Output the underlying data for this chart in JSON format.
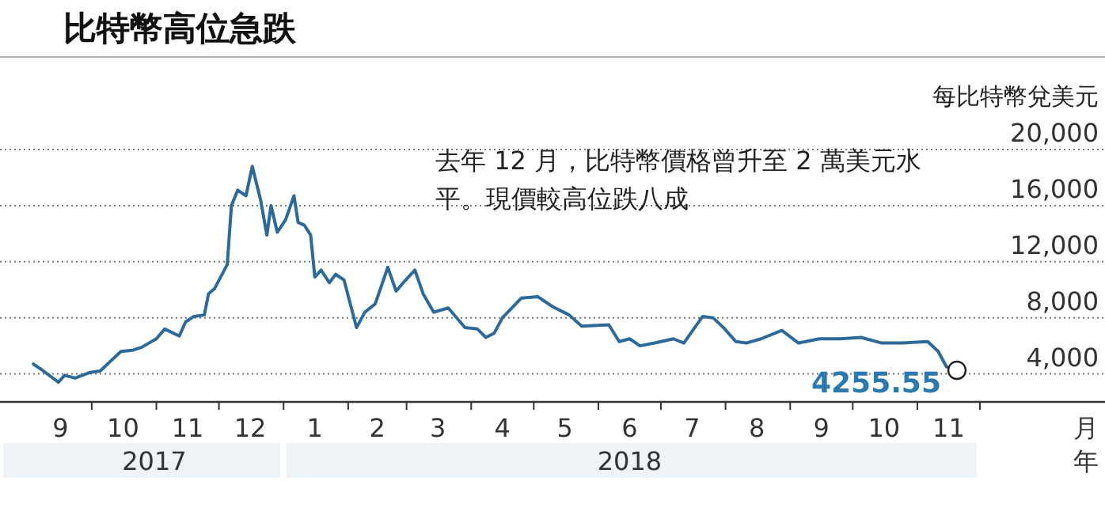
{
  "chart_data": {
    "type": "line",
    "title": "比特幣高位急跌",
    "ylabel": "每比特幣兌美元",
    "xlabel": "月",
    "x2label": "年",
    "annotations": [
      "去年 12 月，比特幣價格曾升至 2 萬美元水平。現價較高位跌八成",
      {
        "text": "4255.55",
        "x": "2018-11-20",
        "y": 4255.55
      }
    ],
    "x2lim": [
      "2017-08-18",
      "2019-01-30"
    ],
    "x2ticks": [
      {
        "value": "2017-10-31",
        "label": "2017"
      },
      {
        "value": "2018-06-16",
        "label": "2018"
      }
    ],
    "x": [
      "2017-09-03",
      "2017-09-07",
      "2017-09-15",
      "2017-09-18",
      "2017-09-23",
      "2017-09-30",
      "2017-10-05",
      "2017-10-10",
      "2017-10-15",
      "2017-10-21",
      "2017-10-25",
      "2017-11-01",
      "2017-11-05",
      "2017-11-12",
      "2017-11-15",
      "2017-11-19",
      "2017-11-24",
      "2017-11-26",
      "2017-11-29",
      "2017-12-05",
      "2017-12-07",
      "2017-12-10",
      "2017-12-14",
      "2017-12-17",
      "2017-12-21",
      "2017-12-24",
      "2017-12-26",
      "2017-12-29",
      "2018-01-02",
      "2018-01-06",
      "2018-01-08",
      "2018-01-11",
      "2018-01-14",
      "2018-01-16",
      "2018-01-19",
      "2018-01-23",
      "2018-01-26",
      "2018-01-30",
      "2018-02-05",
      "2018-02-09",
      "2018-02-14",
      "2018-02-20",
      "2018-02-24",
      "2018-02-28",
      "2018-03-05",
      "2018-03-09",
      "2018-03-14",
      "2018-03-21",
      "2018-03-29",
      "2018-04-04",
      "2018-04-08",
      "2018-04-12",
      "2018-04-16",
      "2018-04-25",
      "2018-05-03",
      "2018-05-10",
      "2018-05-18",
      "2018-05-24",
      "2018-06-06",
      "2018-06-11",
      "2018-06-16",
      "2018-06-21",
      "2018-06-28",
      "2018-07-07",
      "2018-07-12",
      "2018-07-21",
      "2018-07-26",
      "2018-07-31",
      "2018-08-06",
      "2018-08-11",
      "2018-08-18",
      "2018-08-28",
      "2018-09-05",
      "2018-09-15",
      "2018-09-25",
      "2018-10-05",
      "2018-10-15",
      "2018-10-25",
      "2018-11-06",
      "2018-11-11",
      "2018-11-15",
      "2018-11-20"
    ],
    "series": [
      {
        "color": "#2b6a9b",
        "values": [
          4700,
          4300,
          3400,
          3900,
          3700,
          4100,
          4200,
          4900,
          5600,
          5700,
          5900,
          6500,
          7200,
          6700,
          7700,
          8100,
          8200,
          9700,
          10100,
          11800,
          16000,
          17100,
          16700,
          18800,
          16400,
          13900,
          16000,
          14100,
          15000,
          16700,
          14800,
          14600,
          13900,
          10900,
          11400,
          10500,
          11100,
          10700,
          7300,
          8400,
          9000,
          11600,
          9900,
          10600,
          11400,
          9700,
          8400,
          8700,
          7300,
          7200,
          6600,
          6900,
          8000,
          9400,
          9500,
          8800,
          8200,
          7400,
          7500,
          6300,
          6500,
          6000,
          6200,
          6500,
          6200,
          8100,
          8000,
          7300,
          6300,
          6200,
          6500,
          7100,
          6200,
          6500,
          6500,
          6600,
          6200,
          6200,
          6300,
          5600,
          4500,
          4255.55
        ]
      }
    ],
    "xlim": [
      "2017-08-18",
      "2019-01-30"
    ],
    "xticks": [
      {
        "value": "2017-10-01",
        "label": null
      },
      {
        "value": "2017-11-01",
        "label": null
      },
      {
        "value": "2017-12-01",
        "label": null
      },
      {
        "value": "2018-01-01",
        "label": null
      },
      {
        "value": "2018-02-01",
        "label": null
      },
      {
        "value": "2018-03-01",
        "label": null
      },
      {
        "value": "2018-04-01",
        "label": null
      },
      {
        "value": "2018-05-01",
        "label": null
      },
      {
        "value": "2018-06-01",
        "label": null
      },
      {
        "value": "2018-07-01",
        "label": null
      },
      {
        "value": "2018-08-01",
        "label": null
      },
      {
        "value": "2018-09-01",
        "label": null
      },
      {
        "value": "2018-10-01",
        "label": null
      },
      {
        "value": "2018-11-01",
        "label": null
      },
      {
        "value": "2018-12-01",
        "label": null
      },
      {
        "value": "2017-09-16",
        "label": "9"
      },
      {
        "value": "2017-10-16",
        "label": "10"
      },
      {
        "value": "2017-11-16",
        "label": "11"
      },
      {
        "value": "2017-12-16",
        "label": "12"
      },
      {
        "value": "2018-01-16",
        "label": "1"
      },
      {
        "value": "2018-02-15",
        "label": "2"
      },
      {
        "value": "2018-03-16",
        "label": "3"
      },
      {
        "value": "2018-04-16",
        "label": "4"
      },
      {
        "value": "2018-05-16",
        "label": "5"
      },
      {
        "value": "2018-06-16",
        "label": "6"
      },
      {
        "value": "2018-07-16",
        "label": "7"
      },
      {
        "value": "2018-08-16",
        "label": "8"
      },
      {
        "value": "2018-09-16",
        "label": "9"
      },
      {
        "value": "2018-10-16",
        "label": "10"
      },
      {
        "value": "2018-11-16",
        "label": "11"
      }
    ],
    "ylim": [
      2000,
      20000
    ],
    "yticks": [
      {
        "value": 4000,
        "label": "4,000"
      },
      {
        "value": 8000,
        "label": "8,000"
      },
      {
        "value": 12000,
        "label": "12,000"
      },
      {
        "value": 16000,
        "label": "16,000"
      },
      {
        "value": 20000,
        "label": "20,000"
      }
    ],
    "grid": "y",
    "marker": "none",
    "line_style": "solid"
  }
}
